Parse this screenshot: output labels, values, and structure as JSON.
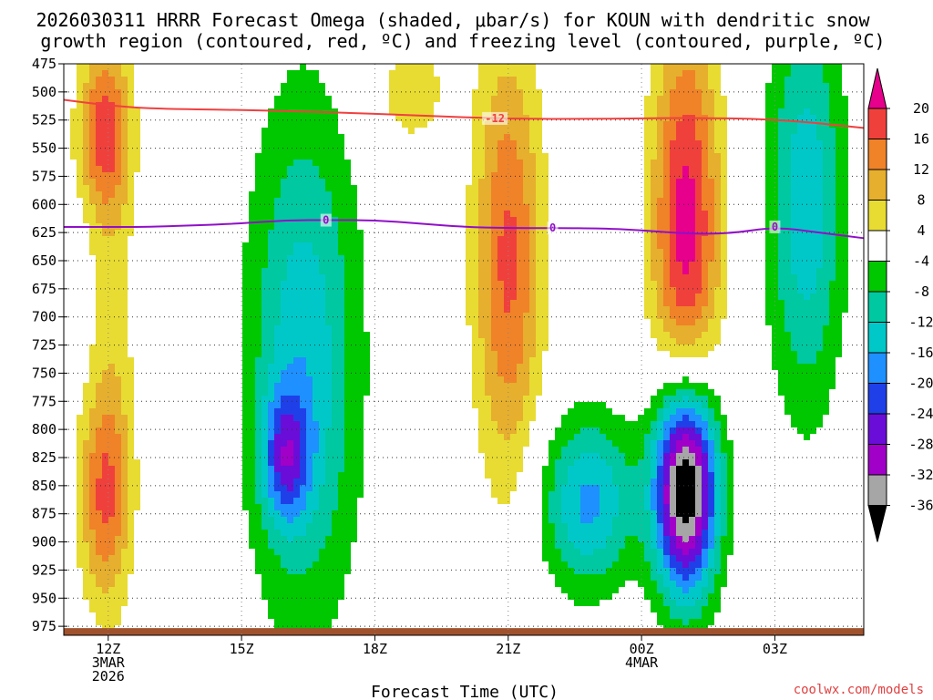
{
  "chart_data": {
    "type": "heatmap",
    "title_line1": "2026030311 HRRR Forecast Omega (shaded, μbar/s) for KOUN with dendritic snow",
    "title_line2": "growth region (contoured, red, ºC) and freezing level (contoured, purple, ºC)",
    "xlabel": "Forecast Time (UTC)",
    "credit": "coolwx.com/models",
    "x_range_hours": [
      11,
      29
    ],
    "x_ticks": [
      {
        "h": 12,
        "lines": [
          "12Z",
          "3MAR",
          "2026"
        ]
      },
      {
        "h": 15,
        "lines": [
          "15Z"
        ]
      },
      {
        "h": 18,
        "lines": [
          "18Z"
        ]
      },
      {
        "h": 21,
        "lines": [
          "21Z"
        ]
      },
      {
        "h": 24,
        "lines": [
          "00Z",
          "4MAR"
        ]
      },
      {
        "h": 27,
        "lines": [
          "03Z"
        ]
      }
    ],
    "y_range_mb": [
      475,
      983
    ],
    "y_ticks": [
      "475",
      "500",
      "525",
      "550",
      "575",
      "600",
      "625",
      "650",
      "675",
      "700",
      "725",
      "750",
      "775",
      "800",
      "825",
      "850",
      "875",
      "900",
      "925",
      "950",
      "975"
    ],
    "colorbar": {
      "labels": [
        "20",
        "16",
        "12",
        "8",
        "4",
        "-4",
        "-8",
        "-12",
        "-16",
        "-20",
        "-24",
        "-28",
        "-32",
        "-36"
      ],
      "levels": [
        -36,
        -32,
        -28,
        -24,
        -20,
        -16,
        -12,
        -8,
        -4,
        4,
        8,
        12,
        16,
        20
      ],
      "colors": [
        "#000000",
        "#a6a6a6",
        "#a000c8",
        "#6a0dd8",
        "#1f3fe8",
        "#1e90ff",
        "#00c8c8",
        "#00c8a0",
        "#00c800",
        "#ffffff",
        "#e8dc32",
        "#e6af2d",
        "#f08228",
        "#f0403c",
        "#e6008c"
      ]
    },
    "features": [
      {
        "name": "ascent-12z-upper",
        "center": [
          11.9,
          535
        ],
        "rx": 0.62,
        "ry": 75,
        "omega": 16
      },
      {
        "name": "ascent-12z-lower",
        "center": [
          11.9,
          860
        ],
        "rx": 0.62,
        "ry": 95,
        "omega": 14
      },
      {
        "name": "ascent-12z-column",
        "center": [
          12.1,
          700
        ],
        "rx": 0.55,
        "ry": 260,
        "omega": 6
      },
      {
        "name": "descent-1630z",
        "center": [
          16.4,
          740
        ],
        "rx": 1.3,
        "ry": 240,
        "omega": -15
      },
      {
        "name": "descent-16z-low",
        "center": [
          16.0,
          825
        ],
        "rx": 0.55,
        "ry": 60,
        "omega": -17
      },
      {
        "name": "ascent-21z",
        "center": [
          21.0,
          650
        ],
        "rx": 0.8,
        "ry": 200,
        "omega": 17
      },
      {
        "name": "ascent-1830z-top",
        "center": [
          18.8,
          500
        ],
        "rx": 1.0,
        "ry": 60,
        "omega": 6
      },
      {
        "name": "descent-2230z",
        "center": [
          22.8,
          865
        ],
        "rx": 1.1,
        "ry": 80,
        "omega": -17
      },
      {
        "name": "ascent-01z",
        "center": [
          25.0,
          620
        ],
        "rx": 0.8,
        "ry": 190,
        "omega": 22
      },
      {
        "name": "descent-01z-low",
        "center": [
          25.0,
          850
        ],
        "rx": 0.75,
        "ry": 100,
        "omega": -44
      },
      {
        "name": "descent-0330z",
        "center": [
          27.7,
          600
        ],
        "rx": 0.9,
        "ry": 190,
        "omega": -15
      }
    ],
    "dgz_line": {
      "label": "-12",
      "color": "#f04040",
      "points": [
        [
          11,
          507
        ],
        [
          12,
          512
        ],
        [
          13,
          515
        ],
        [
          15,
          516
        ],
        [
          17,
          518
        ],
        [
          19,
          521
        ],
        [
          21,
          524
        ],
        [
          23,
          524
        ],
        [
          25,
          523
        ],
        [
          27,
          524
        ],
        [
          29,
          532
        ]
      ]
    },
    "freezing_line": {
      "label": "0",
      "color": "#9010c8",
      "points": [
        [
          11,
          620
        ],
        [
          12,
          620
        ],
        [
          13,
          620
        ],
        [
          15,
          617
        ],
        [
          16,
          614
        ],
        [
          17,
          614
        ],
        [
          18,
          614
        ],
        [
          19,
          617
        ],
        [
          20,
          620
        ],
        [
          21,
          621
        ],
        [
          23,
          621
        ],
        [
          24,
          623
        ],
        [
          25,
          626
        ],
        [
          26,
          626
        ],
        [
          27,
          620
        ],
        [
          28,
          625
        ],
        [
          29,
          630
        ]
      ]
    },
    "contour_label_hours": {
      "dgz": [
        20.7
      ],
      "freezing": [
        16.9,
        22.0,
        27.0
      ]
    },
    "ground": {
      "from_mb": 975,
      "color": "#a0522d"
    }
  }
}
